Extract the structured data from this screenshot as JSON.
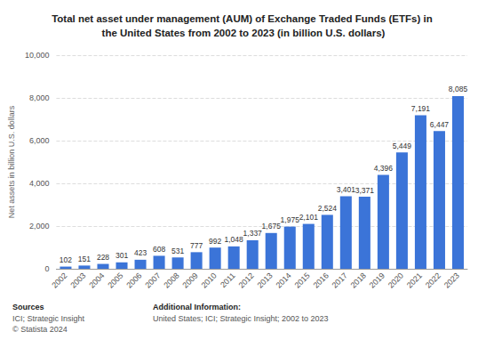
{
  "chart_data": {
    "type": "bar",
    "title": "Total net asset under management (AUM) of Exchange Traded Funds (ETFs) in the United States from 2002 to 2023 (in billion U.S. dollars)",
    "y_label": "Net assets in billion U.S. dollars",
    "categories": [
      "2002",
      "2003",
      "2004",
      "2005",
      "2006",
      "2007",
      "2008",
      "2009",
      "2010",
      "2011",
      "2012",
      "2013",
      "2014",
      "2015",
      "2016",
      "2017",
      "2018",
      "2019",
      "2020",
      "2021",
      "2022",
      "2023"
    ],
    "values": [
      102,
      151,
      228,
      301,
      423,
      608,
      531,
      777,
      992,
      1048,
      1337,
      1675,
      1975,
      2101,
      2524,
      3401,
      3371,
      4396,
      5449,
      7191,
      6447,
      8085
    ],
    "value_labels": [
      "102",
      "151",
      "228",
      "301",
      "423",
      "608",
      "531",
      "777",
      "992",
      "1,048",
      "1,337",
      "1,675",
      "1,975",
      "2,101",
      "2,524",
      "3,401",
      "3,371",
      "4,396",
      "5,449",
      "7,191",
      "6,447",
      "8,085"
    ],
    "color": "#3b74d8",
    "ylim": [
      0,
      10000
    ],
    "yticks": [
      0,
      {
        "value": 2000,
        "label": "2,000"
      },
      {
        "value": 4000,
        "label": "4,000"
      },
      {
        "value": 6000,
        "label": "6,000"
      },
      {
        "value": 8000,
        "label": "8,000"
      },
      {
        "value": 10000,
        "label": "10,000"
      }
    ],
    "grid": true,
    "data_labels": true
  },
  "footer": {
    "sources_title": "Sources",
    "sources": "ICI; Strategic Insight",
    "copyright": "© Statista 2024",
    "info_title": "Additional Information:",
    "info": "United States; ICI; Strategic Insight; 2002 to 2023"
  }
}
